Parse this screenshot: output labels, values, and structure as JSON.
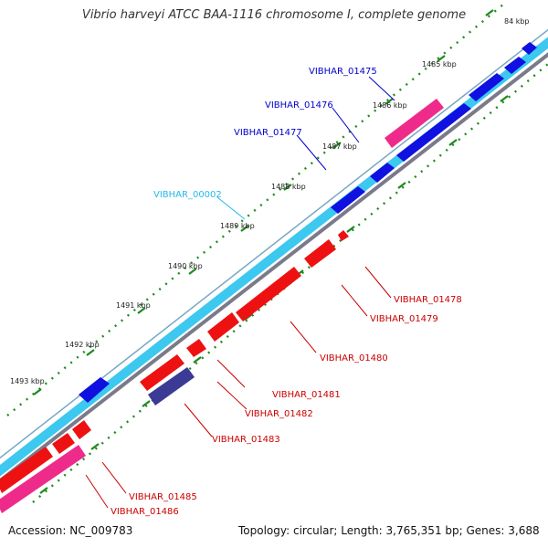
{
  "title": "Vibrio harveyi ATCC BAA-1116 chromosome I, complete genome",
  "footer": {
    "accession": "Accession: NC_009783",
    "topology": "Topology: circular; Length: 3,765,351 bp; Genes: 3,688"
  },
  "colors": {
    "backbone_light": "#3cc8ef",
    "backbone_grey": "#7a7a8a",
    "forward_cds": "#1010e0",
    "reverse_cds": "#ee1111",
    "pink_gene": "#ee2b8a",
    "indigo_gene": "#3b3b95",
    "label_blue": "#0000cc",
    "label_cyan": "#22bbee",
    "label_red": "#cc0000",
    "tick_green": "#1e8a1e"
  },
  "ticks": [
    "84 kbp",
    "1485 kbp",
    "1486 kbp",
    "1487 kbp",
    "1488 kbp",
    "1489 kbp",
    "1490 kbp",
    "1491 kbp",
    "1492 kbp",
    "1493 kbp"
  ],
  "gene_labels": [
    "VIBHAR_01475",
    "VIBHAR_01476",
    "VIBHAR_01477",
    "VIBHAR_00002",
    "VIBHAR_01478",
    "VIBHAR_01479",
    "VIBHAR_01480",
    "VIBHAR_01481",
    "VIBHAR_01482",
    "VIBHAR_01483",
    "VIBHAR_01485",
    "VIBHAR_01486"
  ]
}
